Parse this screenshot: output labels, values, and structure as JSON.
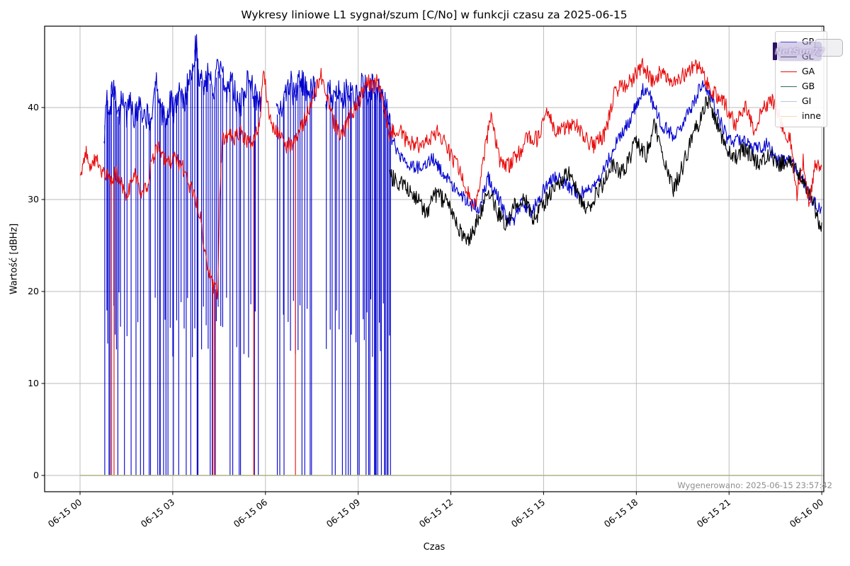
{
  "title": "Wykresy liniowe L1 sygnał/szum [C/No] w funkcji czasu za 2025-06-15",
  "xlabel": "Czas",
  "ylabel": "Wartość [dBHz]",
  "annotation": "Wygenerowano: 2025-06-15 23:57:42",
  "watermark": {
    "text": "NetSun77"
  },
  "legend": {
    "position": "upper right",
    "entries": [
      {
        "label": "GP",
        "color": "#0000cd"
      },
      {
        "label": "GL",
        "color": "#000000"
      },
      {
        "label": "GA",
        "color": "#e80b0b"
      },
      {
        "label": "GB",
        "color": "#2e6f4e"
      },
      {
        "label": "GI",
        "color": "#b6c8dc"
      },
      {
        "label": "inne",
        "color": "#fbd9a8"
      }
    ]
  },
  "axes": {
    "x_tick_labels": [
      "06-15 00",
      "06-15 03",
      "06-15 06",
      "06-15 09",
      "06-15 12",
      "06-15 15",
      "06-15 18",
      "06-15 21",
      "06-16 00"
    ],
    "x_tick_hours": [
      0,
      3,
      6,
      9,
      12,
      15,
      18,
      21,
      24
    ],
    "y_tick_labels": [
      "0",
      "10",
      "20",
      "30",
      "40"
    ],
    "y_tick_values": [
      0,
      10,
      20,
      30,
      40
    ],
    "grid": true,
    "grid_color": "#b8b8b8"
  },
  "chart_data": {
    "type": "line",
    "title": "Wykresy liniowe L1 sygnał/szum [C/No] w funkcji czasu za 2025-06-15",
    "xlabel": "Czas",
    "ylabel": "Wartość [dBHz]",
    "x_unit": "hours since 2025-06-15 00:00",
    "xlim_hours": [
      -1.146,
      24.07
    ],
    "ylim": [
      -1.77,
      48.85
    ],
    "legend_position": "upper right",
    "series": [
      {
        "name": "GP",
        "color": "#0000cd",
        "width": 1.1,
        "noise": 1.6,
        "noise_after": [
          10.15,
          0.75
        ],
        "gaps": [
          [
            5.88,
            6.33
          ],
          [
            7.62,
            7.93
          ]
        ],
        "dropout_windows": [
          [
            0.78,
            1.35,
            12
          ],
          [
            1.4,
            2.35,
            9
          ],
          [
            2.4,
            3.2,
            13
          ],
          [
            3.25,
            4.65,
            20
          ],
          [
            4.7,
            5.85,
            12
          ],
          [
            6.35,
            7.55,
            15
          ],
          [
            7.95,
            9.1,
            14
          ],
          [
            9.15,
            10.08,
            22
          ]
        ],
        "keypoints": [
          [
            0.77,
            36
          ],
          [
            0.85,
            41.8
          ],
          [
            0.95,
            39.5
          ],
          [
            1.05,
            42.3
          ],
          [
            1.15,
            40.5
          ],
          [
            1.25,
            38.5
          ],
          [
            1.35,
            40.8
          ],
          [
            1.5,
            39.2
          ],
          [
            1.6,
            41.5
          ],
          [
            1.75,
            38.2
          ],
          [
            1.9,
            40.6
          ],
          [
            2.05,
            38
          ],
          [
            2.2,
            39.8
          ],
          [
            2.3,
            38.6
          ],
          [
            2.45,
            43.4
          ],
          [
            2.6,
            40.2
          ],
          [
            2.75,
            38.4
          ],
          [
            2.9,
            40.8
          ],
          [
            3.05,
            39.4
          ],
          [
            3.2,
            41.8
          ],
          [
            3.35,
            40.2
          ],
          [
            3.5,
            42.6
          ],
          [
            3.6,
            44
          ],
          [
            3.7,
            46.2
          ],
          [
            3.78,
            46.9
          ],
          [
            3.85,
            43.8
          ],
          [
            4.0,
            42.2
          ],
          [
            4.15,
            43.6
          ],
          [
            4.3,
            41.2
          ],
          [
            4.45,
            44
          ],
          [
            4.6,
            43.4
          ],
          [
            4.75,
            41.6
          ],
          [
            4.9,
            43.8
          ],
          [
            5.05,
            41
          ],
          [
            5.2,
            40.2
          ],
          [
            5.35,
            42.4
          ],
          [
            5.5,
            43.2
          ],
          [
            5.65,
            41.4
          ],
          [
            5.8,
            40.6
          ],
          [
            5.88,
            40
          ],
          [
            6.33,
            38.8
          ],
          [
            6.5,
            40.2
          ],
          [
            6.65,
            41.6
          ],
          [
            6.8,
            42.8
          ],
          [
            6.95,
            41.2
          ],
          [
            7.1,
            43
          ],
          [
            7.25,
            42.2
          ],
          [
            7.4,
            41
          ],
          [
            7.55,
            42.4
          ],
          [
            7.62,
            42
          ],
          [
            7.93,
            40.4
          ],
          [
            8.1,
            41.8
          ],
          [
            8.25,
            40.6
          ],
          [
            8.4,
            42.2
          ],
          [
            8.55,
            41.2
          ],
          [
            8.7,
            42.6
          ],
          [
            8.85,
            40.8
          ],
          [
            9.0,
            41.4
          ],
          [
            9.15,
            42.8
          ],
          [
            9.3,
            41.6
          ],
          [
            9.45,
            42.2
          ],
          [
            9.6,
            41.2
          ],
          [
            9.75,
            42
          ],
          [
            9.9,
            40.2
          ],
          [
            10.05,
            37.8
          ],
          [
            10.2,
            35.6
          ],
          [
            10.4,
            34.6
          ],
          [
            10.7,
            33.8
          ],
          [
            11.0,
            33.4
          ],
          [
            11.4,
            34.4
          ],
          [
            11.8,
            32.8
          ],
          [
            12.2,
            31
          ],
          [
            12.6,
            29.6
          ],
          [
            12.9,
            29
          ],
          [
            13.2,
            32.4
          ],
          [
            13.5,
            30.4
          ],
          [
            13.8,
            28.2
          ],
          [
            14.0,
            27.6
          ],
          [
            14.3,
            29.6
          ],
          [
            14.6,
            28.6
          ],
          [
            15.0,
            31
          ],
          [
            15.4,
            32.6
          ],
          [
            15.8,
            31.4
          ],
          [
            16.2,
            30.6
          ],
          [
            16.6,
            31.6
          ],
          [
            17.0,
            33.6
          ],
          [
            17.4,
            36.4
          ],
          [
            17.8,
            38.6
          ],
          [
            18.2,
            42
          ],
          [
            18.45,
            41.2
          ],
          [
            18.8,
            38.2
          ],
          [
            19.2,
            37
          ],
          [
            19.5,
            38.4
          ],
          [
            19.8,
            40
          ],
          [
            20.1,
            42.4
          ],
          [
            20.4,
            41.4
          ],
          [
            20.7,
            38.6
          ],
          [
            21.0,
            36.2
          ],
          [
            21.4,
            36.6
          ],
          [
            21.8,
            35.4
          ],
          [
            22.2,
            36
          ],
          [
            22.6,
            34.2
          ],
          [
            23.0,
            34.4
          ],
          [
            23.4,
            32
          ],
          [
            23.7,
            30
          ],
          [
            24.0,
            28.6
          ]
        ]
      },
      {
        "name": "GL",
        "color": "#000000",
        "width": 1.1,
        "noise": 0.95,
        "keypoints": [
          [
            10.0,
            32.6
          ],
          [
            10.4,
            31.6
          ],
          [
            10.8,
            30.6
          ],
          [
            11.2,
            28.6
          ],
          [
            11.5,
            30.6
          ],
          [
            11.9,
            29.6
          ],
          [
            12.3,
            26.6
          ],
          [
            12.6,
            25.8
          ],
          [
            12.9,
            28
          ],
          [
            13.2,
            31
          ],
          [
            13.5,
            28.6
          ],
          [
            13.8,
            27.2
          ],
          [
            14.1,
            29.6
          ],
          [
            14.4,
            30
          ],
          [
            14.7,
            27.8
          ],
          [
            15.0,
            29.6
          ],
          [
            15.4,
            31.6
          ],
          [
            15.8,
            33
          ],
          [
            16.1,
            30.6
          ],
          [
            16.4,
            28.8
          ],
          [
            16.8,
            31
          ],
          [
            17.2,
            33.6
          ],
          [
            17.6,
            33
          ],
          [
            18.0,
            36.4
          ],
          [
            18.3,
            34.6
          ],
          [
            18.6,
            38.4
          ],
          [
            18.9,
            34
          ],
          [
            19.2,
            31
          ],
          [
            19.5,
            33.6
          ],
          [
            19.8,
            36.6
          ],
          [
            20.1,
            39
          ],
          [
            20.3,
            41
          ],
          [
            20.6,
            38.4
          ],
          [
            20.9,
            35.6
          ],
          [
            21.2,
            34.6
          ],
          [
            21.5,
            35.6
          ],
          [
            21.9,
            34
          ],
          [
            22.3,
            34.6
          ],
          [
            22.7,
            33.8
          ],
          [
            23.0,
            34
          ],
          [
            23.3,
            32.6
          ],
          [
            23.6,
            30.6
          ],
          [
            23.8,
            28.6
          ],
          [
            24.0,
            26.8
          ]
        ]
      },
      {
        "name": "GA",
        "color": "#e80b0b",
        "width": 1.1,
        "noise": 0.9,
        "dropouts": [
          1.02,
          1.1,
          4.3,
          4.38,
          5.62,
          6.97
        ],
        "keypoints": [
          [
            0.0,
            32.3
          ],
          [
            0.2,
            35.3
          ],
          [
            0.35,
            33.2
          ],
          [
            0.5,
            34.6
          ],
          [
            0.65,
            33.0
          ],
          [
            0.8,
            32.6
          ],
          [
            1.0,
            32.2
          ],
          [
            1.15,
            32.8
          ],
          [
            1.3,
            32.2
          ],
          [
            1.5,
            30.6
          ],
          [
            1.65,
            31.8
          ],
          [
            1.8,
            32.8
          ],
          [
            2.0,
            30.8
          ],
          [
            2.15,
            31.2
          ],
          [
            2.3,
            33.8
          ],
          [
            2.5,
            35.6
          ],
          [
            2.7,
            34.8
          ],
          [
            2.85,
            33.8
          ],
          [
            3.0,
            34.6
          ],
          [
            3.15,
            34.2
          ],
          [
            3.3,
            33.6
          ],
          [
            3.5,
            31.8
          ],
          [
            3.7,
            30.4
          ],
          [
            3.9,
            28.0
          ],
          [
            4.0,
            25.5
          ],
          [
            4.15,
            22.0
          ],
          [
            4.3,
            20.5
          ],
          [
            4.45,
            20.0
          ],
          [
            4.52,
            30.0
          ],
          [
            4.6,
            36.4
          ],
          [
            4.8,
            37.0
          ],
          [
            5.0,
            36.6
          ],
          [
            5.2,
            37.2
          ],
          [
            5.4,
            36.4
          ],
          [
            5.6,
            36.2
          ],
          [
            5.75,
            37.5
          ],
          [
            5.85,
            40.0
          ],
          [
            5.95,
            44.2
          ],
          [
            6.1,
            39.5
          ],
          [
            6.3,
            37.5
          ],
          [
            6.5,
            36.8
          ],
          [
            6.7,
            35.8
          ],
          [
            6.9,
            36.2
          ],
          [
            7.1,
            37.5
          ],
          [
            7.3,
            38.8
          ],
          [
            7.5,
            40.5
          ],
          [
            7.8,
            43.6
          ],
          [
            8.0,
            41.0
          ],
          [
            8.2,
            38.5
          ],
          [
            8.4,
            37.2
          ],
          [
            8.6,
            37.8
          ],
          [
            8.8,
            39.5
          ],
          [
            9.0,
            40.5
          ],
          [
            9.3,
            42.8
          ],
          [
            9.5,
            42.4
          ],
          [
            9.65,
            43.0
          ],
          [
            9.8,
            40.5
          ],
          [
            10.0,
            37.2
          ],
          [
            10.3,
            37.8
          ],
          [
            10.6,
            36.2
          ],
          [
            11.0,
            35.8
          ],
          [
            11.3,
            36.6
          ],
          [
            11.6,
            37.5
          ],
          [
            12.0,
            34.8
          ],
          [
            12.3,
            33.0
          ],
          [
            12.6,
            30.2
          ],
          [
            12.8,
            29.2
          ],
          [
            13.0,
            33.5
          ],
          [
            13.3,
            39.2
          ],
          [
            13.6,
            34.0
          ],
          [
            13.9,
            33.8
          ],
          [
            14.2,
            35.0
          ],
          [
            14.5,
            36.8
          ],
          [
            14.8,
            36.5
          ],
          [
            15.1,
            40.0
          ],
          [
            15.4,
            37.2
          ],
          [
            15.7,
            37.8
          ],
          [
            16.0,
            38.2
          ],
          [
            16.3,
            36.8
          ],
          [
            16.6,
            35.8
          ],
          [
            17.0,
            37.2
          ],
          [
            17.3,
            41.8
          ],
          [
            17.6,
            42.2
          ],
          [
            17.9,
            43.2
          ],
          [
            18.2,
            44.5
          ],
          [
            18.5,
            43.0
          ],
          [
            18.8,
            43.8
          ],
          [
            19.1,
            42.8
          ],
          [
            19.4,
            43.2
          ],
          [
            19.7,
            44.0
          ],
          [
            20.0,
            44.5
          ],
          [
            20.3,
            42.5
          ],
          [
            20.6,
            41.2
          ],
          [
            20.9,
            40.2
          ],
          [
            21.2,
            38.2
          ],
          [
            21.5,
            40.2
          ],
          [
            21.8,
            37.8
          ],
          [
            22.1,
            39.8
          ],
          [
            22.4,
            41.0
          ],
          [
            22.7,
            38.2
          ],
          [
            23.0,
            36.2
          ],
          [
            23.2,
            30.5
          ],
          [
            23.4,
            34.5
          ],
          [
            23.6,
            29.5
          ],
          [
            23.8,
            33.8
          ],
          [
            24.0,
            33.2
          ]
        ]
      },
      {
        "name": "GB",
        "color": "#2e6f4e",
        "width": 1.6,
        "noise": 0,
        "keypoints": [
          [
            0,
            0
          ],
          [
            24,
            0
          ]
        ]
      },
      {
        "name": "GI",
        "color": "#b6c8dc",
        "width": 1.2,
        "noise": 0,
        "keypoints": [
          [
            0,
            0
          ],
          [
            24,
            0
          ]
        ]
      },
      {
        "name": "inne",
        "color": "#fbd9a8",
        "width": 0.9,
        "noise": 0,
        "keypoints": [
          [
            0,
            0
          ],
          [
            24,
            0
          ]
        ]
      }
    ]
  }
}
